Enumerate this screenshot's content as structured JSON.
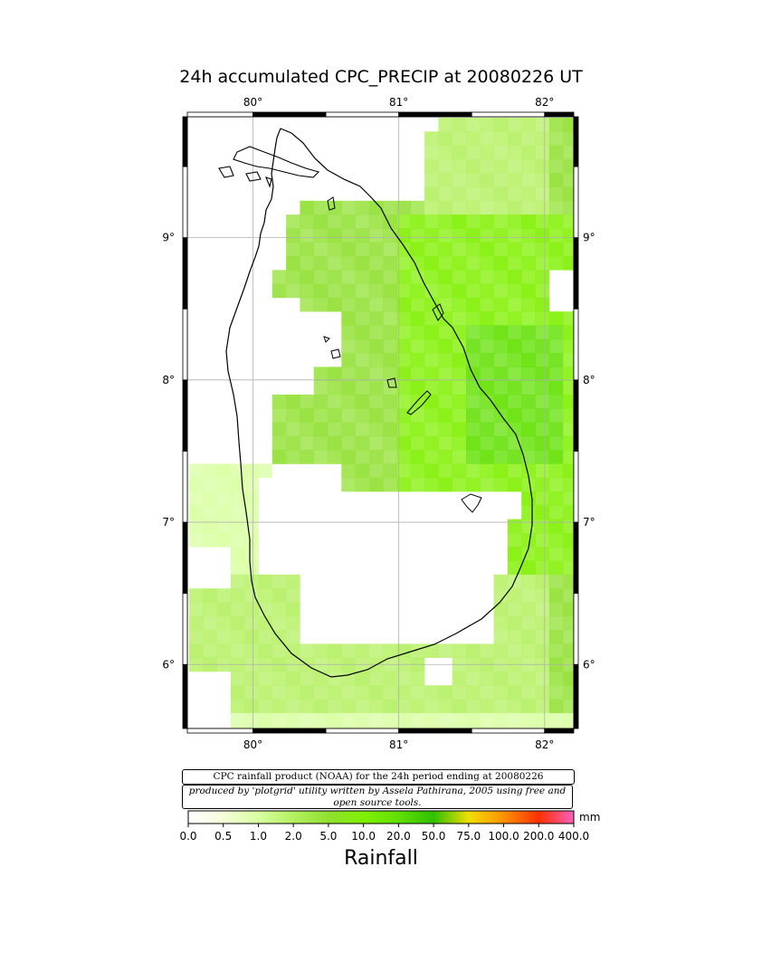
{
  "title": "24h accumulated CPC_PRECIP  at 20080226 UT",
  "axes": {
    "lon_labels": [
      "80°",
      "81°",
      "82°"
    ],
    "lat_labels": [
      "9°",
      "8°",
      "7°",
      "6°"
    ],
    "lon_range": [
      79.55,
      82.2
    ],
    "lat_range": [
      5.55,
      9.85
    ]
  },
  "captions": {
    "line1": "CPC rainfall product (NOAA) for the 24h period ending at 20080226",
    "line2": "produced by 'plotgrid' utility written by Assela Pathirana, 2005 using free and open source tools."
  },
  "legend": {
    "title": "Rainfall",
    "unit": "mm",
    "ticks": [
      "0.0",
      "0.5",
      "1.0",
      "2.0",
      "5.0",
      "10.0",
      "20.0",
      "50.0",
      "75.0",
      "100.0",
      "200.0",
      "400.0"
    ],
    "colors": [
      "#ffffff",
      "#f4ffd8",
      "#d8ffa0",
      "#b4f060",
      "#90e030",
      "#80f000",
      "#60e000",
      "#30c000",
      "#f0e000",
      "#ff9000",
      "#ff3000",
      "#ff60c0"
    ]
  },
  "colors": {
    "land_outline": "#000000",
    "grid": "#b0b0b0",
    "frame": "#000000"
  }
}
